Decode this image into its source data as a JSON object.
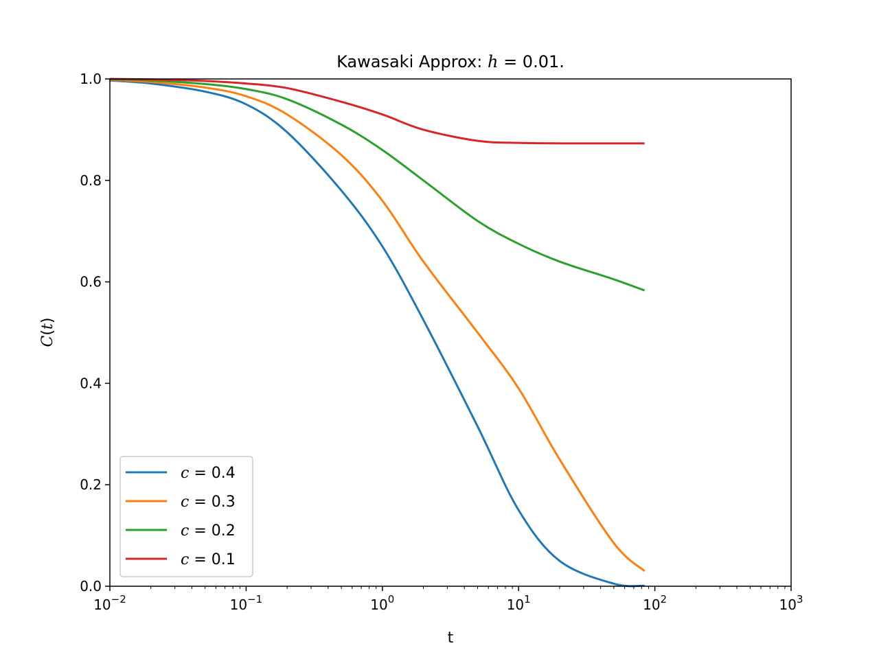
{
  "chart_data": {
    "type": "line",
    "title_prefix": "Kawasaki Approx: ",
    "title_math": "h",
    "title_suffix": " = 0.01.",
    "xlabel": "t",
    "ylabel_var": "C",
    "ylabel_arg": "t",
    "xscale": "log",
    "xlim": [
      0.01,
      1000
    ],
    "ylim": [
      0.0,
      1.0
    ],
    "xticks": [
      {
        "base": "10",
        "exp": "−2",
        "value": 0.01
      },
      {
        "base": "10",
        "exp": "−1",
        "value": 0.1
      },
      {
        "base": "10",
        "exp": "0",
        "value": 1
      },
      {
        "base": "10",
        "exp": "1",
        "value": 10
      },
      {
        "base": "10",
        "exp": "2",
        "value": 100
      },
      {
        "base": "10",
        "exp": "3",
        "value": 1000
      }
    ],
    "yticks": [
      {
        "label": "0.0",
        "value": 0.0
      },
      {
        "label": "0.2",
        "value": 0.2
      },
      {
        "label": "0.4",
        "value": 0.4
      },
      {
        "label": "0.6",
        "value": 0.6
      },
      {
        "label": "0.8",
        "value": 0.8
      },
      {
        "label": "1.0",
        "value": 1.0
      }
    ],
    "grid": false,
    "legend_position": "lower-left",
    "x": [
      0.01,
      0.02,
      0.05,
      0.1,
      0.2,
      0.5,
      1,
      2,
      5,
      10,
      20,
      50,
      84
    ],
    "series": [
      {
        "name_var": "c",
        "name_value": " = 0.4",
        "color": "#1f77b4",
        "values": [
          0.997,
          0.991,
          0.975,
          0.95,
          0.895,
          0.78,
          0.67,
          0.525,
          0.315,
          0.15,
          0.05,
          0.005,
          0.001
        ]
      },
      {
        "name_var": "c",
        "name_value": " = 0.3",
        "color": "#ff7f0e",
        "values": [
          0.998,
          0.994,
          0.983,
          0.966,
          0.93,
          0.85,
          0.76,
          0.64,
          0.5,
          0.39,
          0.25,
          0.085,
          0.03
        ]
      },
      {
        "name_var": "c",
        "name_value": " = 0.2",
        "color": "#2ca02c",
        "values": [
          0.999,
          0.997,
          0.99,
          0.98,
          0.96,
          0.91,
          0.86,
          0.8,
          0.72,
          0.675,
          0.64,
          0.605,
          0.583
        ]
      },
      {
        "name_var": "c",
        "name_value": " = 0.1",
        "color": "#d62728",
        "values": [
          1.0,
          0.999,
          0.996,
          0.991,
          0.982,
          0.955,
          0.93,
          0.9,
          0.878,
          0.874,
          0.873,
          0.873,
          0.873
        ]
      }
    ]
  }
}
